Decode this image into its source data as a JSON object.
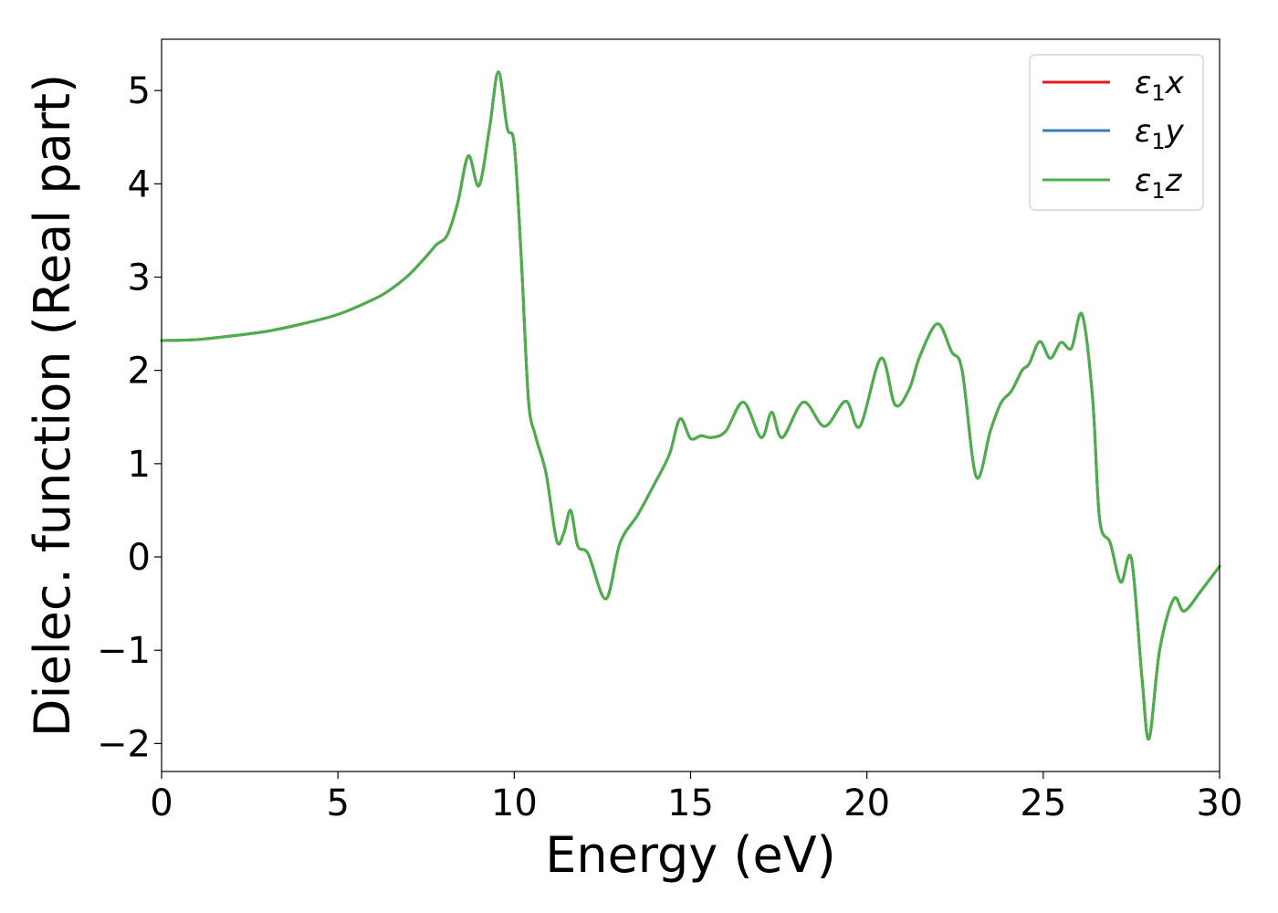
{
  "chart_data": {
    "type": "line",
    "xlabel": "Energy (eV)",
    "ylabel": "Dielec. function (Real part)",
    "xlim": [
      0,
      30
    ],
    "ylim": [
      -2.3,
      5.55
    ],
    "xticks": [
      0,
      5,
      10,
      15,
      20,
      25,
      30
    ],
    "yticks": [
      -2,
      -1,
      0,
      1,
      2,
      3,
      4,
      5
    ],
    "xtick_labels": [
      "0",
      "5",
      "10",
      "15",
      "20",
      "25",
      "30"
    ],
    "ytick_labels": [
      "−2",
      "−1",
      "0",
      "1",
      "2",
      "3",
      "4",
      "5"
    ],
    "grid": false,
    "legend_position": "top-right",
    "series": [
      {
        "name": "ε1x",
        "color": "#e41a1c",
        "x": [
          0,
          1,
          2,
          3,
          4,
          5,
          6,
          6.5,
          7,
          7.5,
          7.8,
          8.1,
          8.4,
          8.7,
          9.0,
          9.3,
          9.55,
          9.8,
          10.0,
          10.2,
          10.4,
          10.6,
          10.9,
          11.2,
          11.4,
          11.6,
          11.8,
          12.1,
          12.6,
          13.0,
          13.5,
          14.0,
          14.4,
          14.7,
          15.0,
          15.3,
          15.6,
          16.0,
          16.5,
          17.0,
          17.3,
          17.6,
          18.2,
          18.8,
          19.4,
          19.8,
          20.4,
          20.8,
          21.2,
          21.5,
          22.0,
          22.4,
          22.7,
          23.1,
          23.5,
          23.8,
          24.1,
          24.4,
          24.6,
          24.9,
          25.2,
          25.5,
          25.8,
          26.1,
          26.4,
          26.6,
          26.9,
          27.2,
          27.5,
          27.8,
          28.0,
          28.3,
          28.7,
          29.0,
          29.5,
          30.0
        ],
        "y": [
          2.32,
          2.33,
          2.37,
          2.42,
          2.5,
          2.6,
          2.76,
          2.87,
          3.02,
          3.22,
          3.35,
          3.45,
          3.8,
          4.3,
          3.98,
          4.6,
          5.2,
          4.6,
          4.42,
          3.2,
          1.7,
          1.3,
          0.9,
          0.18,
          0.25,
          0.5,
          0.12,
          0.03,
          -0.45,
          0.15,
          0.45,
          0.8,
          1.1,
          1.48,
          1.27,
          1.3,
          1.28,
          1.35,
          1.66,
          1.28,
          1.55,
          1.28,
          1.66,
          1.4,
          1.67,
          1.4,
          2.13,
          1.63,
          1.8,
          2.15,
          2.5,
          2.2,
          2.0,
          0.86,
          1.35,
          1.65,
          1.78,
          2.0,
          2.07,
          2.31,
          2.13,
          2.3,
          2.24,
          2.6,
          1.7,
          0.4,
          0.15,
          -0.27,
          -0.02,
          -1.3,
          -1.95,
          -1.0,
          -0.45,
          -0.58,
          -0.35,
          -0.1
        ]
      },
      {
        "name": "ε1y",
        "color": "#377eb8",
        "x": [
          0,
          1,
          2,
          3,
          4,
          5,
          6,
          6.5,
          7,
          7.5,
          7.8,
          8.1,
          8.4,
          8.7,
          9.0,
          9.3,
          9.55,
          9.8,
          10.0,
          10.2,
          10.4,
          10.6,
          10.9,
          11.2,
          11.4,
          11.6,
          11.8,
          12.1,
          12.6,
          13.0,
          13.5,
          14.0,
          14.4,
          14.7,
          15.0,
          15.3,
          15.6,
          16.0,
          16.5,
          17.0,
          17.3,
          17.6,
          18.2,
          18.8,
          19.4,
          19.8,
          20.4,
          20.8,
          21.2,
          21.5,
          22.0,
          22.4,
          22.7,
          23.1,
          23.5,
          23.8,
          24.1,
          24.4,
          24.6,
          24.9,
          25.2,
          25.5,
          25.8,
          26.1,
          26.4,
          26.6,
          26.9,
          27.2,
          27.5,
          27.8,
          28.0,
          28.3,
          28.7,
          29.0,
          29.5,
          30.0
        ],
        "y": [
          2.32,
          2.33,
          2.37,
          2.42,
          2.5,
          2.6,
          2.76,
          2.87,
          3.02,
          3.22,
          3.35,
          3.45,
          3.8,
          4.3,
          3.98,
          4.6,
          5.2,
          4.6,
          4.42,
          3.2,
          1.7,
          1.3,
          0.9,
          0.18,
          0.25,
          0.5,
          0.12,
          0.03,
          -0.45,
          0.15,
          0.45,
          0.8,
          1.1,
          1.48,
          1.27,
          1.3,
          1.28,
          1.35,
          1.66,
          1.28,
          1.55,
          1.28,
          1.66,
          1.4,
          1.67,
          1.4,
          2.13,
          1.63,
          1.8,
          2.15,
          2.5,
          2.2,
          2.0,
          0.86,
          1.35,
          1.65,
          1.78,
          2.0,
          2.07,
          2.31,
          2.13,
          2.3,
          2.24,
          2.6,
          1.7,
          0.4,
          0.15,
          -0.27,
          -0.02,
          -1.3,
          -1.95,
          -1.0,
          -0.45,
          -0.58,
          -0.35,
          -0.1
        ]
      },
      {
        "name": "ε1z",
        "color": "#4daf4a",
        "x": [
          0,
          1,
          2,
          3,
          4,
          5,
          6,
          6.5,
          7,
          7.5,
          7.8,
          8.1,
          8.4,
          8.7,
          9.0,
          9.3,
          9.55,
          9.8,
          10.0,
          10.2,
          10.4,
          10.6,
          10.9,
          11.2,
          11.4,
          11.6,
          11.8,
          12.1,
          12.6,
          13.0,
          13.5,
          14.0,
          14.4,
          14.7,
          15.0,
          15.3,
          15.6,
          16.0,
          16.5,
          17.0,
          17.3,
          17.6,
          18.2,
          18.8,
          19.4,
          19.8,
          20.4,
          20.8,
          21.2,
          21.5,
          22.0,
          22.4,
          22.7,
          23.1,
          23.5,
          23.8,
          24.1,
          24.4,
          24.6,
          24.9,
          25.2,
          25.5,
          25.8,
          26.1,
          26.4,
          26.6,
          26.9,
          27.2,
          27.5,
          27.8,
          28.0,
          28.3,
          28.7,
          29.0,
          29.5,
          30.0
        ],
        "y": [
          2.32,
          2.33,
          2.37,
          2.42,
          2.5,
          2.6,
          2.76,
          2.87,
          3.02,
          3.22,
          3.35,
          3.45,
          3.8,
          4.3,
          3.98,
          4.6,
          5.2,
          4.6,
          4.42,
          3.2,
          1.7,
          1.3,
          0.9,
          0.18,
          0.25,
          0.5,
          0.12,
          0.03,
          -0.45,
          0.15,
          0.45,
          0.8,
          1.1,
          1.48,
          1.27,
          1.3,
          1.28,
          1.35,
          1.66,
          1.28,
          1.55,
          1.28,
          1.66,
          1.4,
          1.67,
          1.4,
          2.13,
          1.63,
          1.8,
          2.15,
          2.5,
          2.2,
          2.0,
          0.86,
          1.35,
          1.65,
          1.78,
          2.0,
          2.07,
          2.31,
          2.13,
          2.3,
          2.24,
          2.6,
          1.7,
          0.4,
          0.15,
          -0.27,
          -0.02,
          -1.3,
          -1.95,
          -1.0,
          -0.45,
          -0.58,
          -0.35,
          -0.1
        ]
      }
    ],
    "legend_entries": [
      {
        "base": "ε",
        "sub": "1",
        "axis": "x"
      },
      {
        "base": "ε",
        "sub": "1",
        "axis": "y"
      },
      {
        "base": "ε",
        "sub": "1",
        "axis": "z"
      }
    ]
  }
}
